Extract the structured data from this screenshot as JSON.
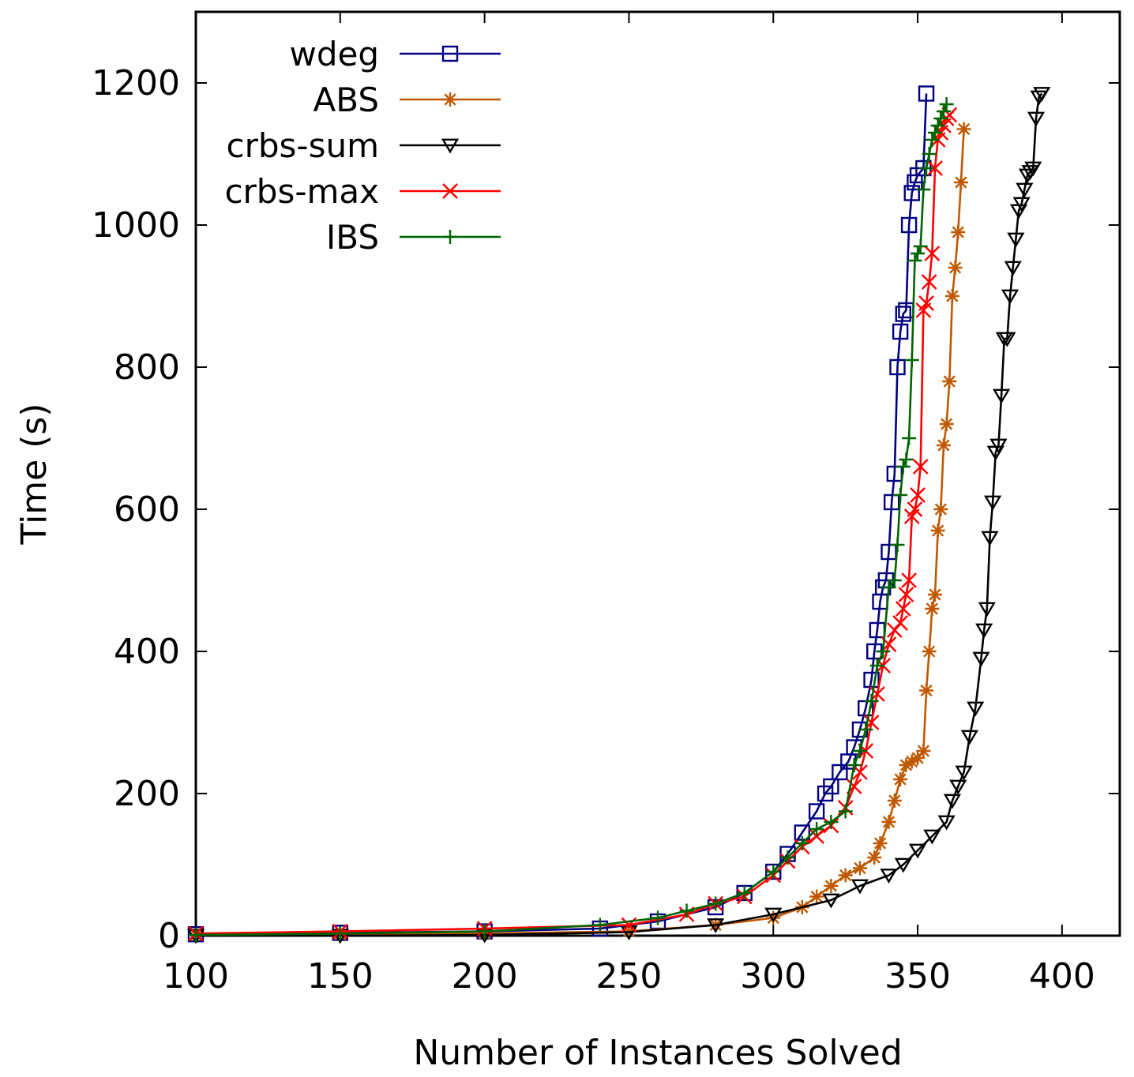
{
  "chart_data": {
    "type": "line",
    "title": "",
    "xlabel": "Number of Instances Solved",
    "ylabel": "Time (s)",
    "xlim": [
      100,
      420
    ],
    "ylim": [
      0,
      1300
    ],
    "xticks": [
      100,
      150,
      200,
      250,
      300,
      350,
      400
    ],
    "yticks": [
      0,
      200,
      400,
      600,
      800,
      1000,
      1200
    ],
    "legend_position": "top-left",
    "grid": false,
    "series": [
      {
        "name": "wdeg",
        "color": "#000080",
        "marker": "square-open",
        "x": [
          100,
          150,
          200,
          240,
          260,
          280,
          290,
          300,
          305,
          310,
          315,
          318,
          320,
          323,
          326,
          328,
          330,
          332,
          334,
          335,
          336,
          337,
          338,
          339,
          340,
          341,
          342,
          343,
          344,
          345,
          346,
          347,
          348,
          349,
          350,
          352,
          353
        ],
        "y": [
          2,
          4,
          6,
          10,
          20,
          40,
          60,
          90,
          115,
          145,
          175,
          200,
          210,
          230,
          245,
          265,
          290,
          320,
          360,
          400,
          430,
          470,
          490,
          500,
          540,
          610,
          650,
          800,
          850,
          875,
          880,
          1000,
          1045,
          1060,
          1070,
          1080,
          1185
        ]
      },
      {
        "name": "ABS",
        "color": "#C05800",
        "marker": "star",
        "x": [
          100,
          150,
          200,
          250,
          280,
          300,
          310,
          315,
          320,
          325,
          330,
          335,
          337,
          340,
          342,
          344,
          346,
          348,
          350,
          352,
          353,
          354,
          355,
          356,
          357,
          358,
          359,
          360,
          361,
          362,
          363,
          364,
          365,
          366
        ],
        "y": [
          1,
          2,
          3,
          6,
          15,
          25,
          40,
          55,
          70,
          85,
          95,
          110,
          130,
          160,
          190,
          220,
          240,
          245,
          250,
          260,
          345,
          400,
          460,
          480,
          570,
          600,
          690,
          720,
          780,
          900,
          940,
          990,
          1060,
          1135
        ]
      },
      {
        "name": "crbs-sum",
        "color": "#000000",
        "marker": "triangle-down-open",
        "x": [
          100,
          150,
          200,
          250,
          280,
          300,
          320,
          330,
          340,
          345,
          350,
          355,
          360,
          362,
          364,
          366,
          368,
          370,
          372,
          373,
          374,
          375,
          376,
          377,
          378,
          379,
          380,
          381,
          382,
          383,
          384,
          385,
          386,
          387,
          388,
          389,
          390,
          391,
          392,
          393
        ],
        "y": [
          0,
          0,
          1,
          5,
          15,
          30,
          50,
          70,
          85,
          100,
          120,
          140,
          160,
          190,
          210,
          230,
          280,
          320,
          390,
          430,
          460,
          560,
          610,
          680,
          690,
          760,
          840,
          840,
          900,
          940,
          980,
          1020,
          1030,
          1050,
          1070,
          1075,
          1080,
          1150,
          1180,
          1185
        ]
      },
      {
        "name": "crbs-max",
        "color": "#FF0000",
        "marker": "cross-x",
        "x": [
          100,
          150,
          200,
          250,
          270,
          280,
          290,
          300,
          305,
          310,
          315,
          320,
          325,
          328,
          330,
          332,
          334,
          336,
          338,
          340,
          342,
          344,
          345,
          346,
          347,
          348,
          349,
          350,
          351,
          352,
          353,
          354,
          355,
          356,
          357,
          358,
          359,
          360,
          361
        ],
        "y": [
          3,
          6,
          10,
          15,
          30,
          45,
          55,
          85,
          105,
          125,
          140,
          155,
          180,
          210,
          230,
          260,
          300,
          340,
          380,
          410,
          430,
          440,
          460,
          480,
          500,
          590,
          600,
          620,
          660,
          880,
          890,
          920,
          960,
          1080,
          1120,
          1130,
          1140,
          1150,
          1155
        ]
      },
      {
        "name": "IBS",
        "color": "#006400",
        "marker": "plus",
        "x": [
          100,
          150,
          200,
          240,
          260,
          270,
          280,
          290,
          300,
          305,
          310,
          315,
          320,
          325,
          328,
          330,
          332,
          334,
          336,
          338,
          340,
          342,
          343,
          344,
          345,
          346,
          347,
          348,
          349,
          350,
          351,
          352,
          353,
          354,
          355,
          356,
          357,
          358,
          359,
          360
        ],
        "y": [
          1,
          3,
          6,
          15,
          25,
          35,
          45,
          60,
          90,
          110,
          130,
          150,
          160,
          175,
          240,
          260,
          290,
          330,
          380,
          400,
          490,
          500,
          550,
          620,
          660,
          670,
          700,
          810,
          950,
          960,
          970,
          1050,
          1080,
          1100,
          1120,
          1130,
          1140,
          1150,
          1160,
          1170
        ]
      }
    ]
  }
}
